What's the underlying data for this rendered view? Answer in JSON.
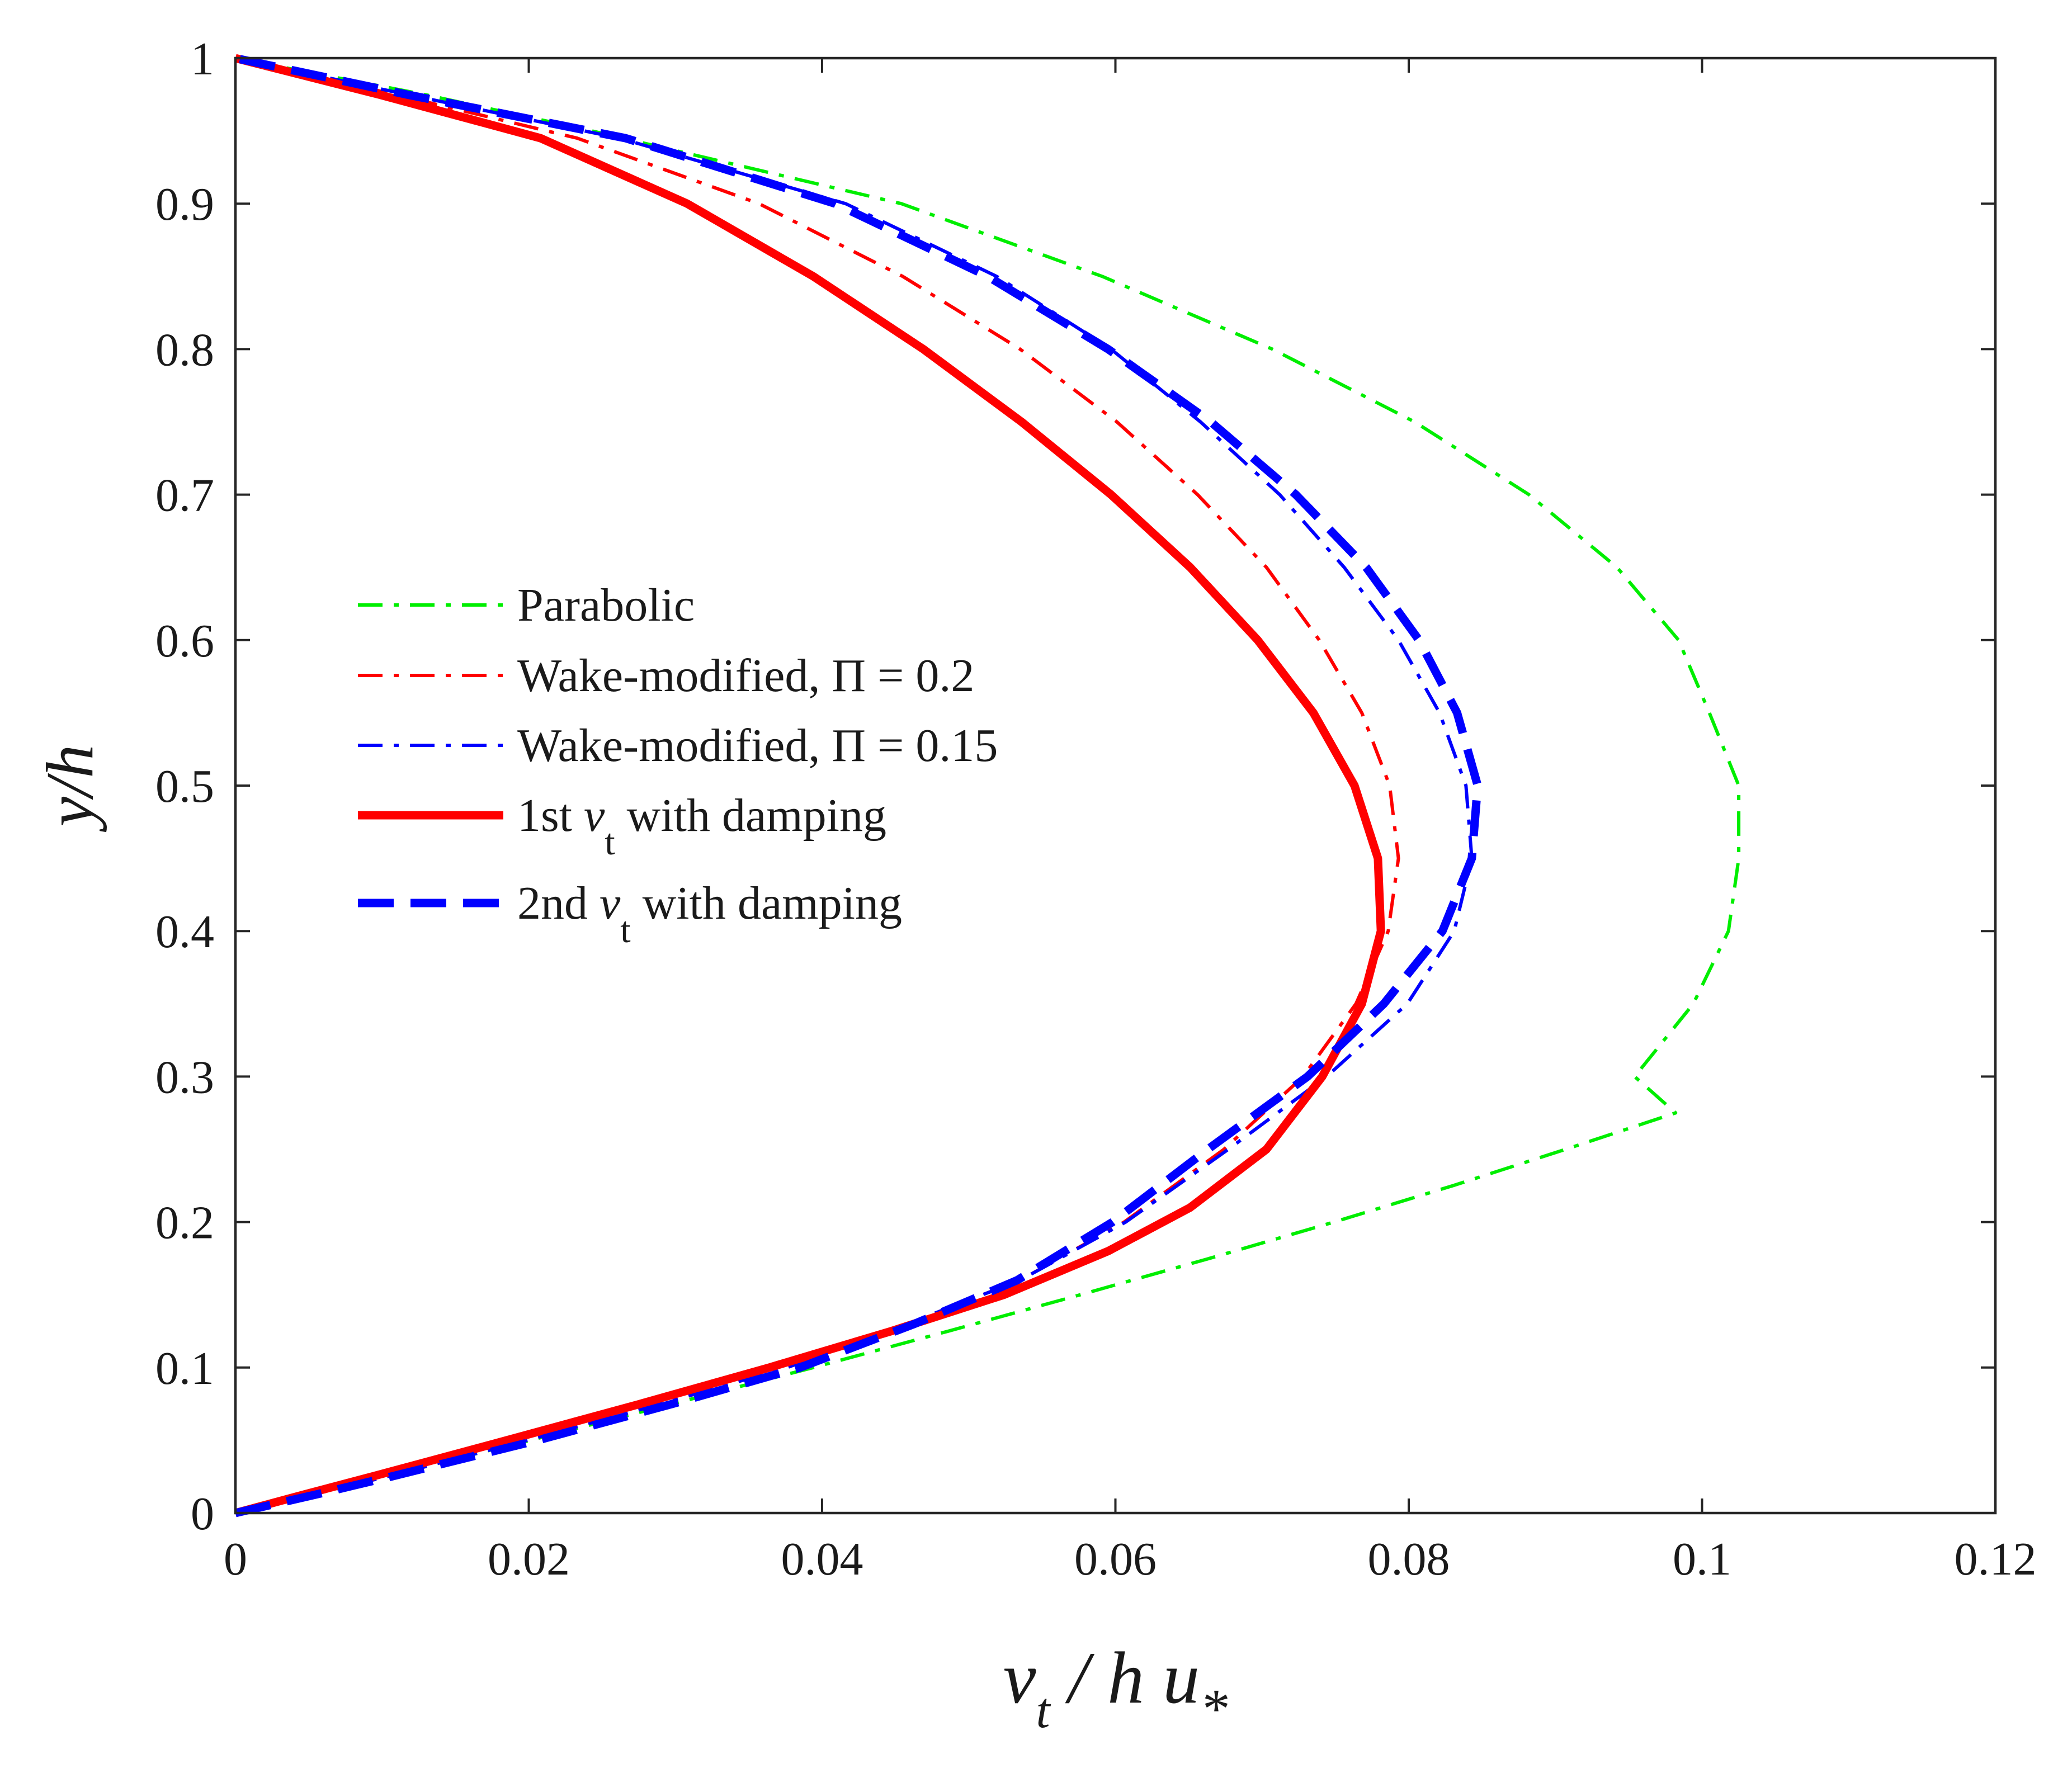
{
  "chart_data": {
    "type": "line",
    "title": "",
    "xlabel": {
      "base": "ν",
      "sub": "t",
      "mid": " / h u",
      "sub2": "*"
    },
    "ylabel": "y/h",
    "xlim": [
      0,
      0.12
    ],
    "ylim": [
      0,
      1
    ],
    "xticks": [
      0,
      0.02,
      0.04,
      0.06,
      0.08,
      0.1,
      0.12
    ],
    "xtick_labels": [
      "0",
      "0.02",
      "0.04",
      "0.06",
      "0.08",
      "0.1",
      "0.12"
    ],
    "yticks": [
      0,
      0.1,
      0.2,
      0.3,
      0.4,
      0.5,
      0.6,
      0.7,
      0.8,
      0.9,
      1
    ],
    "ytick_labels": [
      "0",
      "0.1",
      "0.2",
      "0.3",
      "0.4",
      "0.5",
      "0.6",
      "0.7",
      "0.8",
      "0.9",
      "1"
    ],
    "grid": false,
    "legend_position": "center-left",
    "series": [
      {
        "name": "Parabolic",
        "label": {
          "pre": "Parabolic",
          "sym": "",
          "sub": "",
          "post": ""
        },
        "color": "#00ee00",
        "dash": "dashdot",
        "weight": "thin",
        "points": [
          [
            0,
            0
          ],
          [
            0.0051,
            0.0125
          ],
          [
            0.0101,
            0.025
          ],
          [
            0.0201,
            0.05
          ],
          [
            0.0298,
            0.075
          ],
          [
            0.0394,
            0.1
          ],
          [
            0.0486,
            0.125
          ],
          [
            0.0576,
            0.15
          ],
          [
            0.0664,
            0.175
          ],
          [
            0.0749,
            0.2
          ],
          [
            0.083,
            0.225
          ],
          [
            0.0907,
            0.25
          ],
          [
            0.0982,
            0.275
          ],
          [
            0.0954,
            0.3
          ],
          [
            0.0994,
            0.35
          ],
          [
            0.1018,
            0.4
          ],
          [
            0.1025,
            0.45
          ],
          [
            0.1025,
            0.5
          ],
          [
            0.1005,
            0.55
          ],
          [
            0.0984,
            0.6
          ],
          [
            0.0942,
            0.65
          ],
          [
            0.0882,
            0.7
          ],
          [
            0.0804,
            0.75
          ],
          [
            0.0707,
            0.8
          ],
          [
            0.0591,
            0.85
          ],
          [
            0.0454,
            0.9
          ],
          [
            0.0243,
            0.95
          ],
          [
            0.0129,
            0.975
          ],
          [
            0,
            1
          ]
        ]
      },
      {
        "name": "Wake-modified, Π = 0.2",
        "label": {
          "pre": "Wake-modified, ",
          "sym": "Π",
          "sub": "",
          "post": " = 0.2"
        },
        "color": "#ff0000",
        "dash": "dashdot",
        "weight": "thin",
        "points": [
          [
            0,
            0
          ],
          [
            0.0052,
            0.0125
          ],
          [
            0.0103,
            0.025
          ],
          [
            0.0199,
            0.05
          ],
          [
            0.029,
            0.075
          ],
          [
            0.0376,
            0.1
          ],
          [
            0.0458,
            0.13
          ],
          [
            0.0535,
            0.16
          ],
          [
            0.0606,
            0.2
          ],
          [
            0.0674,
            0.25
          ],
          [
            0.0728,
            0.3
          ],
          [
            0.0764,
            0.35
          ],
          [
            0.0786,
            0.4
          ],
          [
            0.0793,
            0.45
          ],
          [
            0.0787,
            0.5
          ],
          [
            0.0768,
            0.55
          ],
          [
            0.0739,
            0.6
          ],
          [
            0.0703,
            0.65
          ],
          [
            0.0656,
            0.7
          ],
          [
            0.0601,
            0.75
          ],
          [
            0.0535,
            0.8
          ],
          [
            0.0455,
            0.85
          ],
          [
            0.0357,
            0.9
          ],
          [
            0.0233,
            0.945
          ],
          [
            0.0109,
            0.975
          ],
          [
            0,
            1
          ]
        ]
      },
      {
        "name": "Wake-modified, Π = 0.15",
        "label": {
          "pre": "Wake-modified, ",
          "sym": "Π",
          "sub": "",
          "post": " = 0.15"
        },
        "color": "#0000ff",
        "dash": "dashdot",
        "weight": "thin",
        "points": [
          [
            0,
            0
          ],
          [
            0.0052,
            0.0125
          ],
          [
            0.0103,
            0.025
          ],
          [
            0.0199,
            0.05
          ],
          [
            0.029,
            0.075
          ],
          [
            0.0376,
            0.1
          ],
          [
            0.0458,
            0.13
          ],
          [
            0.0535,
            0.16
          ],
          [
            0.0607,
            0.2
          ],
          [
            0.0677,
            0.25
          ],
          [
            0.0744,
            0.3
          ],
          [
            0.0799,
            0.35
          ],
          [
            0.0831,
            0.4
          ],
          [
            0.0843,
            0.45
          ],
          [
            0.0839,
            0.5
          ],
          [
            0.0821,
            0.55
          ],
          [
            0.0793,
            0.6
          ],
          [
            0.0756,
            0.65
          ],
          [
            0.0712,
            0.7
          ],
          [
            0.0658,
            0.75
          ],
          [
            0.0597,
            0.8
          ],
          [
            0.0519,
            0.85
          ],
          [
            0.0416,
            0.9
          ],
          [
            0.0262,
            0.945
          ],
          [
            0.0117,
            0.975
          ],
          [
            0,
            1
          ]
        ]
      },
      {
        "name": "1st νt with damping",
        "label": {
          "pre": "1st ",
          "sym": "ν",
          "sub": "t",
          "post": " with damping"
        },
        "color": "#ff0000",
        "dash": "solid",
        "weight": "thick",
        "points": [
          [
            0,
            0
          ],
          [
            0.0046,
            0.0125
          ],
          [
            0.0093,
            0.025
          ],
          [
            0.0185,
            0.05
          ],
          [
            0.0276,
            0.075
          ],
          [
            0.0364,
            0.1
          ],
          [
            0.0447,
            0.125
          ],
          [
            0.0524,
            0.15
          ],
          [
            0.0595,
            0.18
          ],
          [
            0.0651,
            0.21
          ],
          [
            0.0703,
            0.25
          ],
          [
            0.0741,
            0.3
          ],
          [
            0.0768,
            0.35
          ],
          [
            0.0781,
            0.4
          ],
          [
            0.0779,
            0.45
          ],
          [
            0.0763,
            0.5
          ],
          [
            0.0735,
            0.55
          ],
          [
            0.0697,
            0.6
          ],
          [
            0.0651,
            0.65
          ],
          [
            0.0597,
            0.7
          ],
          [
            0.0536,
            0.75
          ],
          [
            0.0469,
            0.8
          ],
          [
            0.0394,
            0.85
          ],
          [
            0.0308,
            0.9
          ],
          [
            0.0208,
            0.945
          ],
          [
            0.0098,
            0.975
          ],
          [
            0,
            1
          ]
        ]
      },
      {
        "name": "2nd νt with damping",
        "label": {
          "pre": "2nd ",
          "sym": "ν",
          "sub": "t",
          "post": " with damping"
        },
        "color": "#0000ff",
        "dash": "dashed",
        "weight": "thick",
        "points": [
          [
            0,
            0
          ],
          [
            0.0054,
            0.0125
          ],
          [
            0.0106,
            0.025
          ],
          [
            0.0206,
            0.05
          ],
          [
            0.0298,
            0.075
          ],
          [
            0.0385,
            0.1
          ],
          [
            0.0463,
            0.13
          ],
          [
            0.0533,
            0.16
          ],
          [
            0.0598,
            0.2
          ],
          [
            0.0663,
            0.25
          ],
          [
            0.0731,
            0.3
          ],
          [
            0.0783,
            0.35
          ],
          [
            0.0823,
            0.4
          ],
          [
            0.0843,
            0.45
          ],
          [
            0.0847,
            0.5
          ],
          [
            0.0833,
            0.55
          ],
          [
            0.0807,
            0.6
          ],
          [
            0.0771,
            0.65
          ],
          [
            0.0723,
            0.7
          ],
          [
            0.0665,
            0.75
          ],
          [
            0.0595,
            0.8
          ],
          [
            0.0513,
            0.85
          ],
          [
            0.0409,
            0.9
          ],
          [
            0.0266,
            0.945
          ],
          [
            0.0117,
            0.975
          ],
          [
            0,
            1
          ]
        ]
      }
    ]
  }
}
